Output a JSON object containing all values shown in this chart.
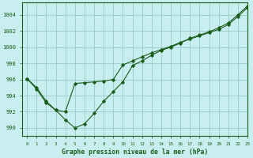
{
  "title": "Graphe pression niveau de la mer (hPa)",
  "bg_color": "#c8eef0",
  "grid_color": "#98ccc8",
  "line_color": "#1a5c1a",
  "xlim": [
    -0.5,
    23
  ],
  "ylim": [
    989.0,
    1005.5
  ],
  "yticks": [
    990,
    992,
    994,
    996,
    998,
    1000,
    1002,
    1004
  ],
  "xticks": [
    0,
    1,
    2,
    3,
    4,
    5,
    6,
    7,
    8,
    9,
    10,
    11,
    12,
    13,
    14,
    15,
    16,
    17,
    18,
    19,
    20,
    21,
    22,
    23
  ],
  "series1_x": [
    0,
    1,
    2,
    3,
    4,
    5,
    6,
    7,
    8,
    9,
    10,
    11,
    12,
    13,
    14,
    15,
    16,
    17,
    18,
    19,
    20,
    21,
    22,
    23
  ],
  "series1_y": [
    996.1,
    995.0,
    993.3,
    992.2,
    992.0,
    995.5,
    995.6,
    995.7,
    995.8,
    996.0,
    997.8,
    998.3,
    998.8,
    999.3,
    999.7,
    1000.1,
    1000.6,
    1001.0,
    1001.4,
    1001.8,
    1002.2,
    1002.8,
    1003.8,
    1004.9
  ],
  "series2_x": [
    0,
    1,
    2,
    3,
    4,
    5,
    6,
    7,
    8,
    9,
    10,
    11,
    12,
    13,
    14,
    15,
    16,
    17,
    18,
    19,
    20,
    21,
    22,
    23
  ],
  "series2_y": [
    996.1,
    994.8,
    993.1,
    992.2,
    991.0,
    990.0,
    990.5,
    991.8,
    993.3,
    994.5,
    995.7,
    997.7,
    998.3,
    999.0,
    999.6,
    1000.0,
    1000.5,
    1001.1,
    1001.5,
    1001.9,
    1002.4,
    1003.0,
    1004.0,
    1005.1
  ]
}
